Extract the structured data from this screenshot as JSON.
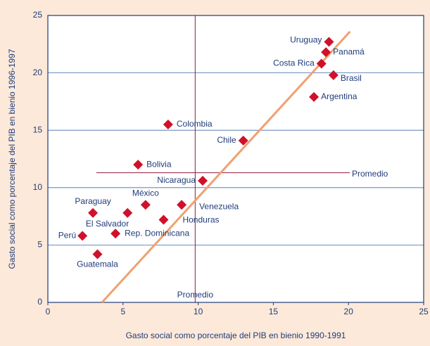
{
  "chart_data": {
    "type": "scatter",
    "x_label": "Gasto social como porcentaje del PIB en bienio 1990-1991",
    "y_label": "Gasto social como porcentaje del PIB en bienio 1996-1997",
    "xlim": [
      0,
      25
    ],
    "ylim": [
      0,
      25
    ],
    "xticks": [
      0,
      5,
      10,
      15,
      20,
      25
    ],
    "yticks": [
      0,
      5,
      10,
      15,
      20,
      25
    ],
    "grid": true,
    "color": "#d0112b",
    "labels": [
      "Uruguay",
      "Panamá",
      "Costa Rica",
      "Brasil",
      "Argentina",
      "Colombia",
      "Chile",
      "Bolivia",
      "Nicaragua",
      "México",
      "Venezuela",
      "Paraguay",
      "El Salvador",
      "Honduras",
      "Rep. Dominicana",
      "Perú",
      "Guatemala"
    ],
    "x": [
      18.7,
      18.5,
      18.2,
      19.0,
      17.7,
      8.0,
      13.0,
      6.0,
      10.3,
      6.5,
      8.9,
      3.0,
      5.3,
      7.7,
      4.5,
      2.3,
      3.3
    ],
    "y": [
      22.7,
      21.8,
      20.8,
      19.8,
      17.9,
      15.5,
      14.1,
      12.0,
      10.6,
      8.5,
      8.5,
      7.8,
      7.8,
      7.2,
      6.0,
      5.8,
      4.2
    ],
    "mean_x": 9.8,
    "mean_y": 11.3,
    "mean_label": "Promedio",
    "trend": {
      "x": [
        3.6,
        20.1
      ],
      "y": [
        0,
        23.6
      ],
      "color": "#f0a070"
    }
  }
}
